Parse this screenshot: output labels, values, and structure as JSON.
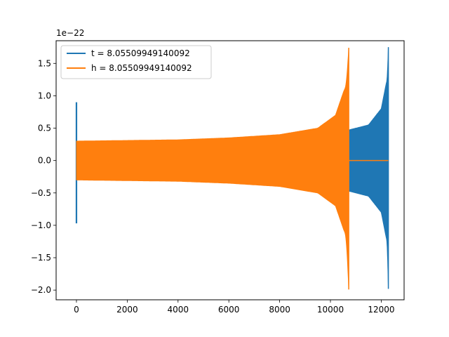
{
  "chart_data": {
    "type": "line",
    "title": "",
    "xlabel": "",
    "ylabel": "",
    "y_offset_label": "1e−22",
    "xlim": [
      -800,
      12900
    ],
    "ylim": [
      -2.15,
      1.85
    ],
    "xticks": [
      0,
      2000,
      4000,
      6000,
      8000,
      10000,
      12000
    ],
    "yticks": [
      -2.0,
      -1.5,
      -1.0,
      -0.5,
      0.0,
      0.5,
      1.0,
      1.5
    ],
    "ytick_labels": [
      "−2.0",
      "−1.5",
      "−1.0",
      "−0.5",
      "0.0",
      "0.5",
      "1.0",
      "1.5"
    ],
    "grid": false,
    "legend_position": "upper-left",
    "series": [
      {
        "name": "t = 8.05509949140092",
        "color": "#1f77b4",
        "spike_x": 0,
        "spike_min": -0.97,
        "spike_max": 0.9,
        "oscillation_start_x": 0,
        "oscillation_end_x": 12280,
        "envelope": [
          {
            "x": 0,
            "amp": 0.29
          },
          {
            "x": 2000,
            "amp": 0.3
          },
          {
            "x": 4000,
            "amp": 0.31
          },
          {
            "x": 6000,
            "amp": 0.34
          },
          {
            "x": 8000,
            "amp": 0.38
          },
          {
            "x": 10000,
            "amp": 0.43
          },
          {
            "x": 10700,
            "amp": 0.47
          },
          {
            "x": 11500,
            "amp": 0.55
          },
          {
            "x": 12000,
            "amp": 0.8
          },
          {
            "x": 12200,
            "amp": 1.2
          }
        ],
        "peak_x": 12280,
        "peak_max": 1.75,
        "peak_min": -1.98
      },
      {
        "name": "h = 8.05509949140092",
        "color": "#ff7f0e",
        "start_x": 0,
        "end_x": 10720,
        "envelope": [
          {
            "x": 0,
            "amp": 0.3
          },
          {
            "x": 2000,
            "amp": 0.31
          },
          {
            "x": 4000,
            "amp": 0.32
          },
          {
            "x": 6000,
            "amp": 0.35
          },
          {
            "x": 8000,
            "amp": 0.4
          },
          {
            "x": 9500,
            "amp": 0.5
          },
          {
            "x": 10200,
            "amp": 0.7
          },
          {
            "x": 10550,
            "amp": 1.1
          }
        ],
        "peak_x": 10720,
        "peak_max": 1.74,
        "peak_min": -1.99,
        "tail_end_x": 12280,
        "tail_value": 0.0
      }
    ]
  }
}
